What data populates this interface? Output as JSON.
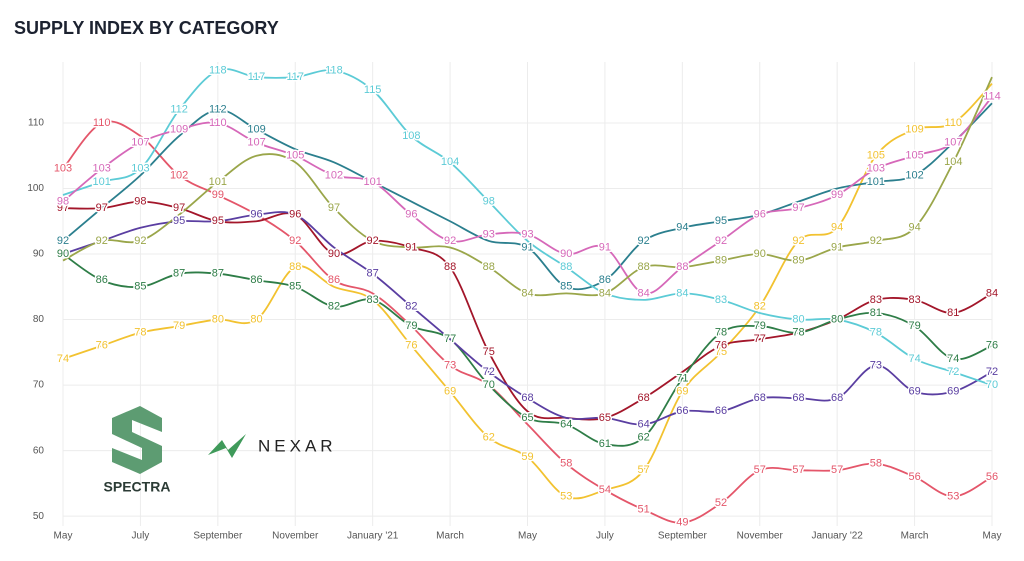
{
  "chart_data": {
    "type": "line",
    "title": "SUPPLY INDEX BY CATEGORY",
    "categories": [
      "May",
      null,
      "July",
      null,
      "September",
      null,
      "November",
      null,
      "January '21",
      null,
      "March",
      null,
      "May",
      null,
      "July",
      null,
      "September",
      null,
      "November",
      null,
      "January '22",
      null,
      "March",
      null,
      "May"
    ],
    "ylim": [
      48.5,
      119.3
    ],
    "yticks": [
      50,
      60,
      70,
      80,
      90,
      100,
      110
    ],
    "grid": true,
    "series": [
      {
        "color": "#e4566a",
        "values": [
          103,
          110,
          108,
          102,
          99,
          96,
          92,
          86,
          84,
          79,
          73,
          70,
          64,
          58,
          54,
          51,
          49,
          52,
          57,
          57,
          57,
          58,
          56,
          53,
          56
        ],
        "value_labels": [
          "103",
          "110",
          null,
          "102",
          "99",
          "96",
          "92",
          "86",
          null,
          null,
          "73",
          null,
          null,
          "58",
          "54",
          "51",
          "49",
          "52",
          "57",
          "57",
          "57",
          "58",
          "56",
          "53",
          "56"
        ]
      },
      {
        "color": "#f2c230",
        "values": [
          74,
          76,
          78,
          79,
          80,
          80,
          88,
          85,
          83,
          76,
          69,
          62,
          59,
          53,
          54,
          57,
          69,
          75,
          82,
          92,
          94,
          105,
          109,
          110,
          116
        ],
        "value_labels": [
          "74",
          "76",
          "78",
          "79",
          "80",
          "80",
          "88",
          null,
          null,
          "76",
          "69",
          "62",
          "59",
          "53",
          null,
          "57",
          "69",
          "75",
          "82",
          "92",
          "94",
          "105",
          "109",
          "110",
          null
        ]
      },
      {
        "color": "#a3162a",
        "values": [
          97,
          97,
          98,
          97,
          95,
          95,
          96,
          90,
          92,
          91,
          88,
          75,
          66,
          65,
          65,
          68,
          72,
          76,
          77,
          78,
          80,
          83,
          83,
          81,
          84
        ],
        "value_labels": [
          "97",
          "97",
          "98",
          "97",
          "95",
          null,
          "96",
          "90",
          "92",
          "91",
          "88",
          "75",
          null,
          null,
          "65",
          "68",
          null,
          "76",
          "77",
          null,
          null,
          "83",
          "83",
          "81",
          "84"
        ]
      },
      {
        "color": "#2e7d47",
        "values": [
          90,
          86,
          85,
          87,
          87,
          86,
          85,
          82,
          83,
          79,
          77,
          70,
          65,
          64,
          61,
          62,
          71,
          78,
          79,
          78,
          80,
          81,
          79,
          74,
          76
        ]
      },
      {
        "color": "#5a3ea1",
        "values": [
          90,
          92,
          94,
          95,
          95,
          96,
          96,
          91,
          87,
          82,
          77,
          72,
          68,
          65,
          65,
          64,
          66,
          66,
          68,
          68,
          68,
          73,
          69,
          69,
          72
        ],
        "value_labels": [
          null,
          null,
          null,
          "95",
          null,
          "96",
          null,
          null,
          "87",
          "82",
          null,
          "72",
          "68",
          null,
          null,
          "64",
          "66",
          "66",
          "68",
          "68",
          "68",
          "73",
          "69",
          "69",
          "72"
        ]
      },
      {
        "color": "#2b7f8e",
        "values": [
          92,
          97,
          102,
          108,
          112,
          109,
          106,
          104,
          101,
          98,
          95,
          92,
          91,
          85,
          86,
          92,
          94,
          95,
          96,
          98,
          100,
          101,
          102,
          107,
          113
        ],
        "value_labels": [
          "92",
          null,
          null,
          null,
          "112",
          "109",
          null,
          null,
          null,
          null,
          null,
          null,
          "91",
          "85",
          "86",
          "92",
          "94",
          "95",
          null,
          null,
          null,
          "101",
          "102",
          null,
          null
        ]
      },
      {
        "color": "#5ccbd6",
        "values": [
          99,
          101,
          103,
          112,
          118,
          117,
          117,
          118,
          115,
          108,
          104,
          98,
          92,
          88,
          84,
          83,
          84,
          83,
          81,
          80,
          80,
          78,
          74,
          72,
          70
        ],
        "value_labels": [
          null,
          "101",
          "103",
          "112",
          "118",
          "117",
          "117",
          "118",
          "115",
          "108",
          "104",
          "98",
          null,
          "88",
          null,
          null,
          "84",
          "83",
          null,
          "80",
          null,
          "78",
          "74",
          "72",
          "70"
        ]
      },
      {
        "color": "#d668b9",
        "values": [
          98,
          103,
          107,
          109,
          110,
          107,
          105,
          102,
          101,
          96,
          92,
          93,
          93,
          90,
          91,
          84,
          88,
          92,
          96,
          97,
          99,
          103,
          105,
          107,
          114
        ]
      },
      {
        "color": "#9aa64a",
        "values": [
          89,
          92,
          92,
          96,
          101,
          105,
          104,
          97,
          92,
          91,
          91,
          88,
          84,
          84,
          84,
          88,
          88,
          89,
          90,
          89,
          91,
          92,
          94,
          104,
          117
        ],
        "value_labels": [
          null,
          "92",
          "92",
          null,
          "101",
          null,
          null,
          "97",
          null,
          null,
          null,
          "88",
          "84",
          null,
          "84",
          "88",
          null,
          "89",
          "90",
          "89",
          "91",
          "92",
          "94",
          "104",
          null
        ]
      }
    ]
  },
  "branding": {
    "spectra": "SPECTRA",
    "nexar": "NEXAR"
  }
}
